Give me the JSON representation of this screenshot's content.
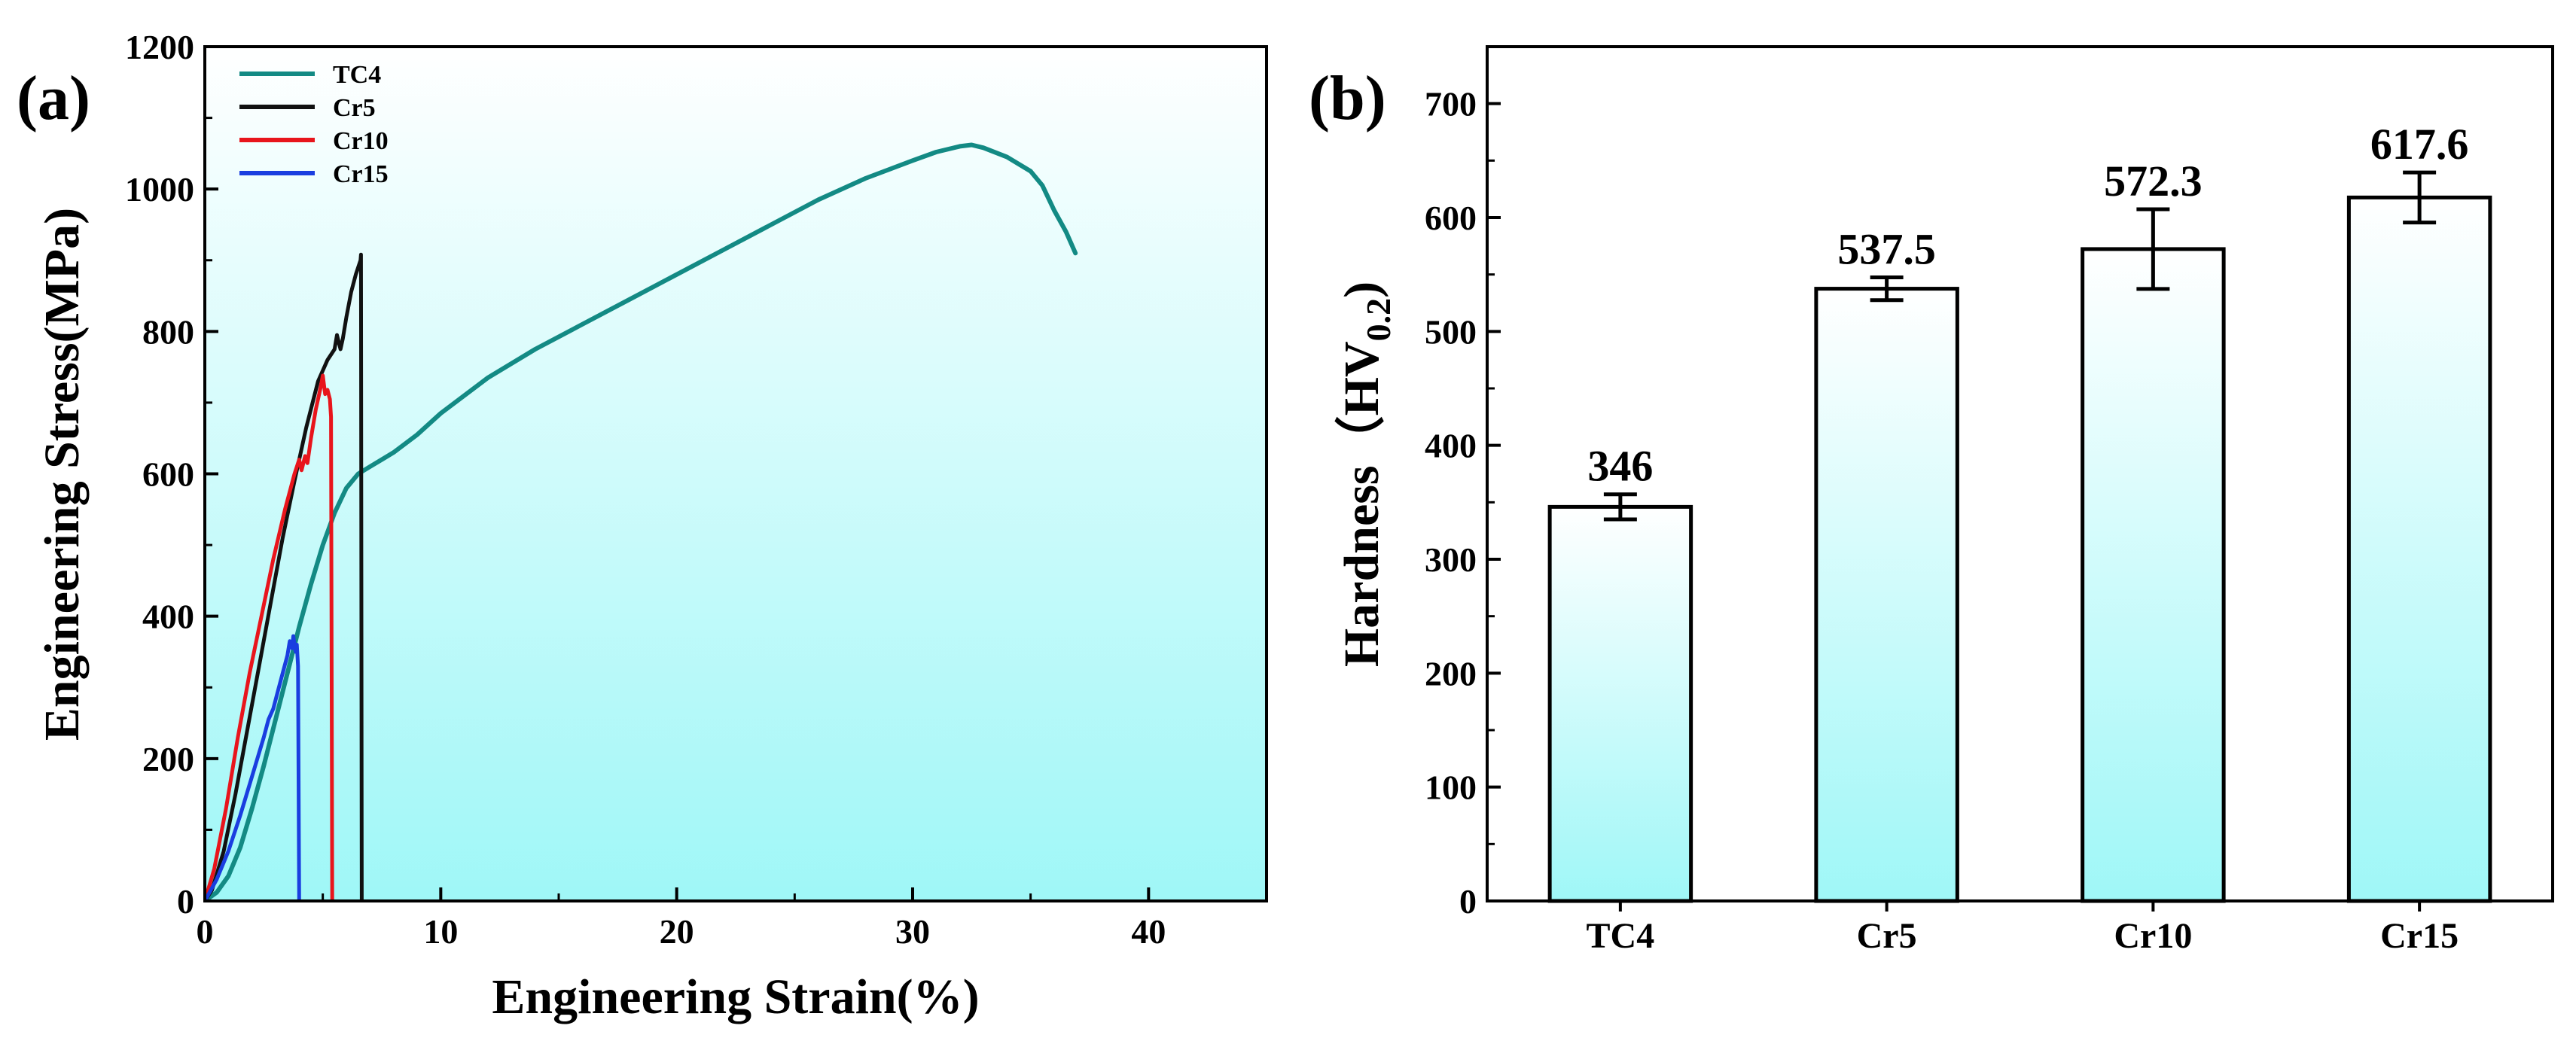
{
  "colors": {
    "tc4": "#138a84",
    "cr5": "#111111",
    "cr10": "#e8151c",
    "cr15": "#1a3ee0",
    "gradient_top": "#ffffff",
    "gradient_bottom": "#9ff7f7"
  },
  "chart_data": [
    {
      "type": "line",
      "panel_label": "(a)",
      "title": "",
      "xlabel": "Engineering Strain(%)",
      "ylabel": "Engineering Stress(MPa)",
      "xlim": [
        0,
        45
      ],
      "ylim": [
        0,
        1200
      ],
      "xticks": [
        0,
        10,
        20,
        30,
        40
      ],
      "xtick_labels": [
        "0",
        "10",
        "20",
        "30",
        "40"
      ],
      "yticks": [
        0,
        200,
        400,
        600,
        800,
        1000,
        1200
      ],
      "ytick_labels": [
        "0",
        "200",
        "400",
        "600",
        "800",
        "1000",
        "1200"
      ],
      "legend_position": "top-left",
      "series": [
        {
          "name": "TC4",
          "color_key": "tc4",
          "x": [
            0,
            0.5,
            1.0,
            1.5,
            2.0,
            2.5,
            3.0,
            3.5,
            4.0,
            4.5,
            5.0,
            5.5,
            6.0,
            6.5,
            7.0,
            8.0,
            9.0,
            10.0,
            12.0,
            14.0,
            16.0,
            18.0,
            20.0,
            22.0,
            24.0,
            26.0,
            28.0,
            30.0,
            31.0,
            32.0,
            32.5,
            33.0,
            34.0,
            35.0,
            35.5,
            36.0,
            36.5,
            36.9
          ],
          "y": [
            0,
            12,
            35,
            75,
            130,
            190,
            255,
            320,
            385,
            445,
            500,
            545,
            580,
            600,
            610,
            630,
            655,
            685,
            735,
            775,
            810,
            845,
            880,
            915,
            950,
            985,
            1015,
            1040,
            1052,
            1060,
            1062,
            1058,
            1045,
            1025,
            1005,
            970,
            940,
            910
          ]
        },
        {
          "name": "Cr5",
          "color_key": "cr5",
          "x": [
            0,
            0.3,
            0.8,
            1.3,
            1.8,
            2.3,
            2.8,
            3.3,
            3.8,
            4.3,
            4.8,
            5.2,
            5.5,
            5.6,
            5.75,
            5.85,
            6.0,
            6.2,
            6.4,
            6.6,
            6.62,
            6.65
          ],
          "y": [
            0,
            15,
            70,
            150,
            240,
            330,
            420,
            510,
            590,
            665,
            730,
            760,
            775,
            795,
            775,
            790,
            820,
            855,
            880,
            900,
            908,
            0
          ]
        },
        {
          "name": "Cr10",
          "color_key": "cr10",
          "x": [
            0,
            0.4,
            0.9,
            1.4,
            1.9,
            2.4,
            2.9,
            3.4,
            3.8,
            4.0,
            4.1,
            4.25,
            4.35,
            4.5,
            4.7,
            4.9,
            5.0,
            5.1,
            5.2,
            5.3,
            5.35,
            5.4
          ],
          "y": [
            0,
            45,
            130,
            230,
            320,
            400,
            480,
            550,
            600,
            620,
            605,
            625,
            615,
            650,
            690,
            720,
            738,
            712,
            718,
            705,
            680,
            0
          ]
        },
        {
          "name": "Cr15",
          "color_key": "cr15",
          "x": [
            0,
            0.5,
            1.0,
            1.5,
            2.0,
            2.5,
            2.7,
            2.9,
            3.1,
            3.3,
            3.5,
            3.6,
            3.7,
            3.75,
            3.85,
            3.9,
            3.95,
            4.0
          ],
          "y": [
            0,
            30,
            70,
            120,
            175,
            230,
            255,
            270,
            295,
            320,
            345,
            365,
            355,
            372,
            350,
            360,
            330,
            0
          ]
        }
      ]
    },
    {
      "type": "bar",
      "panel_label": "(b)",
      "title": "",
      "xlabel": "",
      "ylabel_main": "Hardness",
      "ylabel_paren_open": "（",
      "ylabel_unit": "HV",
      "ylabel_sub": "0.2",
      "ylabel_paren_close": ")",
      "ylim": [
        0,
        750
      ],
      "yticks": [
        0,
        100,
        200,
        300,
        400,
        500,
        600,
        700
      ],
      "ytick_labels": [
        "0",
        "100",
        "200",
        "300",
        "400",
        "500",
        "600",
        "700"
      ],
      "categories": [
        "TC4",
        "Cr5",
        "Cr10",
        "Cr15"
      ],
      "values": [
        346,
        537.5,
        572.3,
        617.6
      ],
      "value_labels": [
        "346",
        "537.5",
        "572.3",
        "617.6"
      ],
      "errors": [
        11,
        10,
        35,
        22
      ]
    }
  ]
}
